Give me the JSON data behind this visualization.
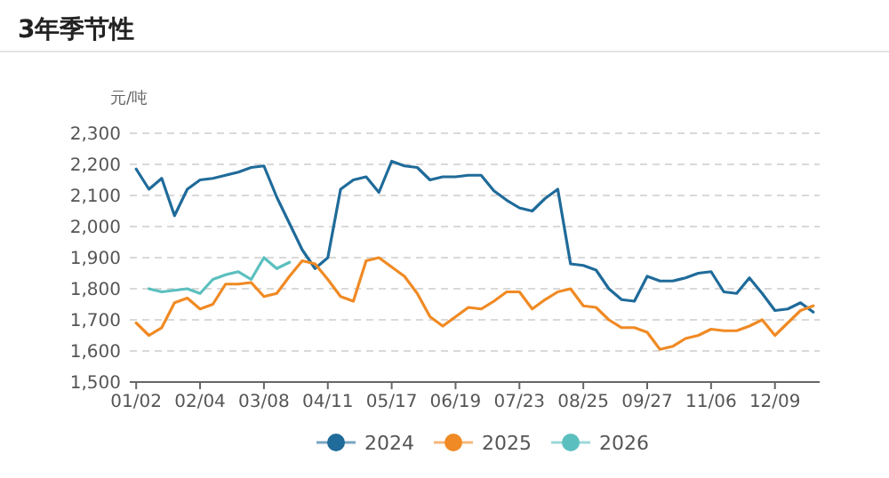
{
  "chart_data": {
    "type": "line",
    "title": "3年季节性",
    "ylabel": "元/吨",
    "categories": [
      "01/02",
      null,
      null,
      null,
      null,
      "02/04",
      null,
      null,
      null,
      null,
      "03/08",
      null,
      null,
      null,
      null,
      "04/11",
      null,
      null,
      null,
      null,
      "05/17",
      null,
      null,
      null,
      null,
      "06/19",
      null,
      null,
      null,
      null,
      "07/23",
      null,
      null,
      null,
      null,
      "08/25",
      null,
      null,
      null,
      null,
      "09/27",
      null,
      null,
      null,
      null,
      "11/06",
      null,
      null,
      null,
      null,
      "12/09",
      null,
      null,
      null
    ],
    "ylim": [
      1500,
      2300
    ],
    "yticks": [
      {
        "value": 1500,
        "label": "1,500"
      },
      {
        "value": 1600,
        "label": "1,600"
      },
      {
        "value": 1700,
        "label": "1,700"
      },
      {
        "value": 1800,
        "label": "1,800"
      },
      {
        "value": 1900,
        "label": "1,900"
      },
      {
        "value": 2000,
        "label": "2,000"
      },
      {
        "value": 2100,
        "label": "2,100"
      },
      {
        "value": 2200,
        "label": "2,200"
      },
      {
        "value": 2300,
        "label": "2,300"
      }
    ],
    "grid": "y",
    "legend": "bottom",
    "series": [
      {
        "name": "2024",
        "color": "#1f6b9a",
        "values": [
          2185,
          2120,
          2155,
          2035,
          2120,
          2150,
          2155,
          2165,
          2175,
          2190,
          2195,
          2095,
          2010,
          1925,
          1865,
          1900,
          2120,
          2150,
          2160,
          2110,
          2210,
          2195,
          2190,
          2150,
          2160,
          2160,
          2165,
          2165,
          2115,
          2085,
          2060,
          2050,
          2090,
          2120,
          1880,
          1875,
          1860,
          1800,
          1765,
          1760,
          1840,
          1825,
          1825,
          1835,
          1850,
          1855,
          1790,
          1785,
          1835,
          1785,
          1730,
          1735,
          1755,
          1725
        ]
      },
      {
        "name": "2025",
        "color": "#f08a24",
        "values": [
          1690,
          1650,
          1675,
          1755,
          1770,
          1735,
          1750,
          1815,
          1815,
          1820,
          1775,
          1785,
          1840,
          1890,
          1880,
          1830,
          1775,
          1760,
          1890,
          1900,
          1870,
          1840,
          1785,
          1710,
          1680,
          1710,
          1740,
          1735,
          1760,
          1790,
          1790,
          1735,
          1765,
          1790,
          1800,
          1745,
          1740,
          1700,
          1675,
          1675,
          1660,
          1605,
          1615,
          1640,
          1650,
          1670,
          1665,
          1665,
          1680,
          1700,
          1650,
          1690,
          1730,
          1745
        ]
      },
      {
        "name": "2026",
        "color": "#5bbfbf",
        "values": [
          null,
          1800,
          1790,
          1795,
          1800,
          1785,
          1830,
          1845,
          1855,
          1830,
          1900,
          1865,
          1885,
          null,
          null,
          null,
          null,
          null,
          null,
          null,
          null,
          null,
          null,
          null,
          null,
          null,
          null,
          null,
          null,
          null,
          null,
          null,
          null,
          null,
          null,
          null,
          null,
          null,
          null,
          null,
          null,
          null,
          null,
          null,
          null,
          null,
          null,
          null,
          null,
          null,
          null,
          null,
          null,
          null
        ]
      }
    ]
  }
}
